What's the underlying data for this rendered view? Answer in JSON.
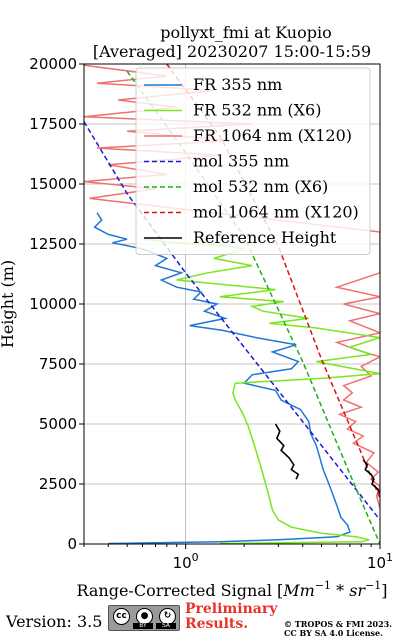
{
  "chart_data": {
    "type": "line",
    "title": "pollyxt_fmi at Kuopio",
    "subtitle": "[Averaged] 20230207 15:00-15:59",
    "xlabel": "Range-Corrected Signal [$Mm^{-1}*sr^{-1}$]",
    "xlabel_main": "Range-Corrected Signal [",
    "xlabel_unit": "Mm",
    "xlabel_exp1": "−1",
    "xlabel_mul": " * sr",
    "xlabel_exp2": "−1",
    "xlabel_close": "]",
    "ylabel": "Height (m)",
    "xscale": "log",
    "xlim": [
      0.3,
      10
    ],
    "ylim": [
      0,
      20000
    ],
    "grid": true,
    "legend_position": "upper right",
    "x_ticks": [
      1,
      10
    ],
    "x_tick_labels": [
      {
        "base": "10",
        "exp": "0"
      },
      {
        "base": "10",
        "exp": "1"
      }
    ],
    "y_ticks": [
      0,
      2500,
      5000,
      7500,
      10000,
      12500,
      15000,
      17500,
      20000
    ],
    "y_tick_labels": [
      "0",
      "2500",
      "5000",
      "7500",
      "10000",
      "12500",
      "15000",
      "17500",
      "20000"
    ],
    "series": [
      {
        "name": "FR 355 nm",
        "color": "#1f77d4",
        "style": "solid",
        "points": [
          [
            0.35,
            13800
          ],
          [
            0.37,
            13500
          ],
          [
            0.34,
            13200
          ],
          [
            0.4,
            12900
          ],
          [
            0.5,
            12700
          ],
          [
            0.42,
            12550
          ],
          [
            0.6,
            12300
          ],
          [
            0.8,
            11900
          ],
          [
            0.7,
            11600
          ],
          [
            0.95,
            11300
          ],
          [
            0.75,
            11000
          ],
          [
            0.9,
            10700
          ],
          [
            1.2,
            10500
          ],
          [
            1.1,
            10200
          ],
          [
            1.45,
            10000
          ],
          [
            1.25,
            9700
          ],
          [
            1.6,
            9400
          ],
          [
            1.05,
            9100
          ],
          [
            1.55,
            8900
          ],
          [
            2.3,
            8600
          ],
          [
            3.7,
            8300
          ],
          [
            2.8,
            8000
          ],
          [
            3.8,
            7600
          ],
          [
            3.5,
            7300
          ],
          [
            2.2,
            7050
          ],
          [
            2.0,
            6700
          ],
          [
            2.9,
            6400
          ],
          [
            3.1,
            6000
          ],
          [
            3.9,
            5600
          ],
          [
            4.3,
            5100
          ],
          [
            4.4,
            4600
          ],
          [
            4.7,
            4100
          ],
          [
            4.9,
            3600
          ],
          [
            5.1,
            3100
          ],
          [
            5.4,
            2600
          ],
          [
            5.7,
            2100
          ],
          [
            6.0,
            1600
          ],
          [
            6.3,
            1100
          ],
          [
            6.8,
            800
          ],
          [
            7.0,
            500
          ],
          [
            6.0,
            300
          ],
          [
            3.0,
            180
          ],
          [
            1.5,
            90
          ],
          [
            0.4,
            20
          ]
        ]
      },
      {
        "name": "FR 532 nm (X6)",
        "color": "#7be51e",
        "style": "solid",
        "points": [
          [
            0.6,
            12700
          ],
          [
            0.9,
            12550
          ],
          [
            1.5,
            12450
          ],
          [
            2.0,
            12300
          ],
          [
            1.4,
            11900
          ],
          [
            2.2,
            11600
          ],
          [
            1.3,
            11300
          ],
          [
            0.9,
            11000
          ],
          [
            1.6,
            10800
          ],
          [
            2.9,
            10600
          ],
          [
            1.5,
            10300
          ],
          [
            3.2,
            10100
          ],
          [
            2.2,
            9900
          ],
          [
            2.5,
            9700
          ],
          [
            4.3,
            9400
          ],
          [
            2.7,
            9200
          ],
          [
            4.7,
            9000
          ],
          [
            10,
            8600
          ],
          [
            7,
            8200
          ],
          [
            9,
            7900
          ],
          [
            4.7,
            7600
          ],
          [
            10,
            7100
          ],
          [
            5,
            6900
          ],
          [
            1.8,
            6700
          ],
          [
            1.75,
            6300
          ],
          [
            1.8,
            6000
          ],
          [
            1.95,
            5500
          ],
          [
            2.1,
            4900
          ],
          [
            2.2,
            4400
          ],
          [
            2.3,
            3900
          ],
          [
            2.4,
            3400
          ],
          [
            2.5,
            2900
          ],
          [
            2.6,
            2400
          ],
          [
            2.7,
            1900
          ],
          [
            2.8,
            1400
          ],
          [
            3.0,
            1000
          ],
          [
            3.5,
            700
          ],
          [
            5.0,
            450
          ],
          [
            7.5,
            300
          ],
          [
            8.8,
            180
          ],
          [
            8.0,
            90
          ],
          [
            1.5,
            20
          ]
        ]
      },
      {
        "name": "FR 1064 nm (X120)",
        "color": "#f07070",
        "style": "solid",
        "points": [
          [
            0.3,
            19950
          ],
          [
            0.8,
            19500
          ],
          [
            0.35,
            19200
          ],
          [
            1.4,
            18900
          ],
          [
            0.45,
            18500
          ],
          [
            0.9,
            18200
          ],
          [
            0.3,
            17800
          ],
          [
            2.2,
            17500
          ],
          [
            0.5,
            17200
          ],
          [
            1.7,
            16800
          ],
          [
            0.35,
            16500
          ],
          [
            1.5,
            16200
          ],
          [
            0.4,
            15800
          ],
          [
            0.8,
            15400
          ],
          [
            0.3,
            15100
          ],
          [
            0.7,
            14800
          ],
          [
            0.32,
            14400
          ],
          [
            10,
            13000
          ],
          [
            10,
            12600
          ],
          [
            10,
            12000
          ],
          [
            10,
            11300
          ],
          [
            6,
            10700
          ],
          [
            10,
            10300
          ],
          [
            6.5,
            10000
          ],
          [
            10,
            9600
          ],
          [
            7,
            9300
          ],
          [
            10,
            8800
          ],
          [
            6,
            8400
          ],
          [
            7.5,
            8100
          ],
          [
            10,
            7800
          ],
          [
            8,
            7400
          ],
          [
            9,
            7000
          ],
          [
            6.5,
            6600
          ],
          [
            7.2,
            6300
          ],
          [
            6.5,
            6000
          ],
          [
            8,
            5700
          ],
          [
            6.2,
            5400
          ],
          [
            7.5,
            5100
          ],
          [
            6.8,
            4800
          ],
          [
            8.2,
            4500
          ],
          [
            7.3,
            4200
          ],
          [
            9.3,
            3800
          ],
          [
            8.5,
            3400
          ],
          [
            9.8,
            3000
          ],
          [
            9.0,
            2700
          ],
          [
            10,
            2400
          ],
          [
            9.6,
            2000
          ],
          [
            10,
            1500
          ]
        ]
      },
      {
        "name": "mol 355 nm",
        "color": "#1a1ad8",
        "style": "dashed",
        "points": [
          [
            0.3,
            17600
          ],
          [
            0.5,
            14600
          ],
          [
            1.0,
            11300
          ],
          [
            2.0,
            8200
          ],
          [
            4.0,
            5100
          ],
          [
            8.0,
            2000
          ],
          [
            10,
            1000
          ]
        ]
      },
      {
        "name": "mol 532 nm (X6)",
        "color": "#18b018",
        "style": "dashed",
        "points": [
          [
            0.5,
            19700
          ],
          [
            1.0,
            16300
          ],
          [
            2.0,
            12800
          ],
          [
            4.0,
            7600
          ],
          [
            6.0,
            4200
          ],
          [
            8.0,
            1800
          ],
          [
            10,
            0
          ]
        ]
      },
      {
        "name": "mol 1064 nm (X120)",
        "color": "#e01010",
        "style": "dashed",
        "points": [
          [
            0.8,
            20000
          ],
          [
            1.5,
            17000
          ],
          [
            3.0,
            12400
          ],
          [
            5.0,
            7700
          ],
          [
            8.0,
            3800
          ],
          [
            10,
            1900
          ]
        ]
      },
      {
        "name": "Reference Height",
        "color": "#000000",
        "style": "solid",
        "points": [
          [
            2.9,
            5000
          ],
          [
            3.05,
            4700
          ],
          [
            2.95,
            4400
          ],
          [
            3.2,
            4100
          ],
          [
            3.1,
            3900
          ],
          [
            3.4,
            3600
          ],
          [
            3.6,
            3300
          ],
          [
            3.5,
            3100
          ],
          [
            3.8,
            2900
          ],
          [
            3.7,
            2700
          ]
        ]
      },
      {
        "name": "Reference Height",
        "color": "#000000",
        "style": "solid",
        "legend": false,
        "points": [
          [
            8.2,
            3500
          ],
          [
            8.6,
            3300
          ],
          [
            8.4,
            3100
          ],
          [
            9.0,
            2900
          ],
          [
            9.3,
            2700
          ],
          [
            9.1,
            2500
          ],
          [
            9.7,
            2300
          ],
          [
            10,
            2100
          ]
        ]
      }
    ]
  },
  "footer": {
    "version": "Version: 3.5",
    "license_badge": {
      "icons": [
        "cc",
        "by",
        "sa"
      ],
      "by_text": "BY",
      "sa_text": "SA"
    },
    "preliminary_line1": "Preliminary",
    "preliminary_line2": "Results.",
    "copyright_line1": "© TROPOS & FMI 2023.",
    "copyright_line2": "CC BY SA 4.0 License."
  }
}
